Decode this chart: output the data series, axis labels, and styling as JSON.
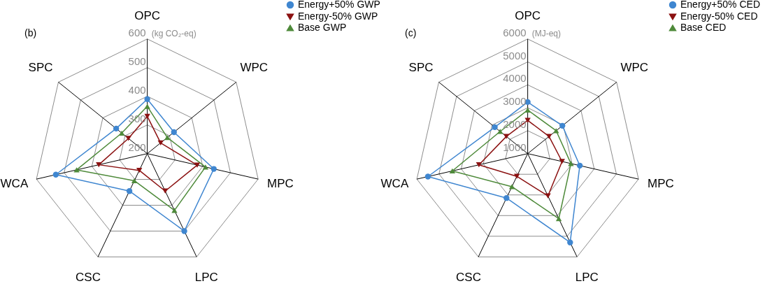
{
  "chart_data": [
    {
      "type": "radar",
      "title": "(b)",
      "ylabel": "(kg CO₂-eq)",
      "categories": [
        "OPC",
        "WPC",
        "MPC",
        "LPC",
        "CSC",
        "WCA",
        "SPC"
      ],
      "ylim": [
        200,
        600
      ],
      "yticks": [
        200,
        300,
        400,
        500,
        600
      ],
      "grid": true,
      "legend": "top right",
      "series": [
        {
          "name": "Energy+50% GWP",
          "color": "#3f86d0",
          "marker": "circle",
          "values": [
            390,
            320,
            440,
            500,
            345,
            530,
            340
          ]
        },
        {
          "name": "Energy-50% GWP",
          "color": "#8b1111",
          "marker": "triangle-down",
          "values": [
            330,
            260,
            380,
            345,
            265,
            375,
            285
          ]
        },
        {
          "name": "Base GWP",
          "color": "#4e8a3a",
          "marker": "triangle",
          "values": [
            365,
            290,
            410,
            420,
            305,
            455,
            315
          ]
        }
      ]
    },
    {
      "type": "radar",
      "title": "(c)",
      "ylabel": "(MJ-eq)",
      "categories": [
        "OPC",
        "WPC",
        "MPC",
        "LPC",
        "CSC",
        "WCA",
        "SPC"
      ],
      "ylim": [
        1000,
        6000
      ],
      "yticks": [
        1000,
        2000,
        3000,
        4000,
        5000,
        6000
      ],
      "grid": true,
      "legend": "top right",
      "series": [
        {
          "name": "Energy+50% CED",
          "color": "#3f86d0",
          "marker": "circle",
          "values": [
            3250,
            2950,
            3350,
            5300,
            3150,
            5500,
            2850
          ]
        },
        {
          "name": "Energy-50% CED",
          "color": "#8b1111",
          "marker": "triangle-down",
          "values": [
            2450,
            2200,
            2550,
            3050,
            2100,
            3200,
            2200
          ]
        },
        {
          "name": "Base CED",
          "color": "#4e8a3a",
          "marker": "triangle",
          "values": [
            2900,
            2600,
            2950,
            4150,
            2600,
            4400,
            2550
          ]
        }
      ]
    }
  ]
}
